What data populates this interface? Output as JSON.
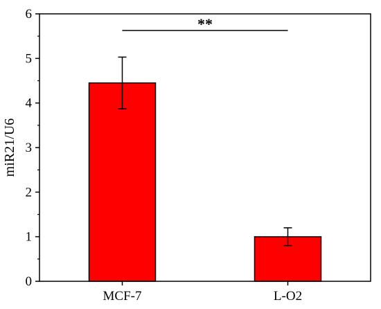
{
  "chart_data": {
    "type": "bar",
    "categories": [
      "MCF-7",
      "L-O2"
    ],
    "values": [
      4.45,
      1.0
    ],
    "errors": [
      0.58,
      0.2
    ],
    "xlabel": "",
    "ylabel": "miR21/U6",
    "ylim": [
      0,
      6
    ],
    "yticks": [
      "0",
      "1",
      "2",
      "3",
      "4",
      "5",
      "6"
    ],
    "significance": "**",
    "grid": false,
    "bar_color": "#ff0000"
  }
}
